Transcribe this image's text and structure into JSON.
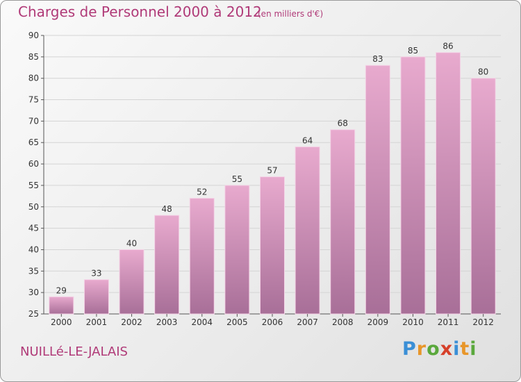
{
  "chart_data": {
    "type": "bar",
    "title": "Charges de Personnel 2000 à 2012",
    "subtitle": "(en milliers d'€)",
    "categories": [
      "2000",
      "2001",
      "2002",
      "2003",
      "2004",
      "2005",
      "2006",
      "2007",
      "2008",
      "2009",
      "2010",
      "2011",
      "2012"
    ],
    "values": [
      29,
      33,
      40,
      48,
      52,
      55,
      57,
      64,
      68,
      83,
      85,
      86,
      80
    ],
    "ylim": [
      25,
      90
    ],
    "yticks": [
      25,
      30,
      35,
      40,
      45,
      50,
      55,
      60,
      65,
      70,
      75,
      80,
      85,
      90
    ],
    "xlabel": "",
    "ylabel": "",
    "grid": true,
    "bar_color_top": "#e8aace",
    "bar_color_bottom": "#a86f98"
  },
  "footer": {
    "commune": "NUILLé-LE-JALAIS",
    "logo_letters": [
      {
        "char": "P",
        "color": "#3a8fd6"
      },
      {
        "char": "r",
        "color": "#e8962a"
      },
      {
        "char": "o",
        "color": "#5aa83c"
      },
      {
        "char": "x",
        "color": "#d6402a"
      },
      {
        "char": "i",
        "color": "#3a8fd6"
      },
      {
        "char": "t",
        "color": "#e8962a"
      },
      {
        "char": "i",
        "color": "#5aa83c"
      }
    ]
  },
  "accent_color": "#b03a78"
}
